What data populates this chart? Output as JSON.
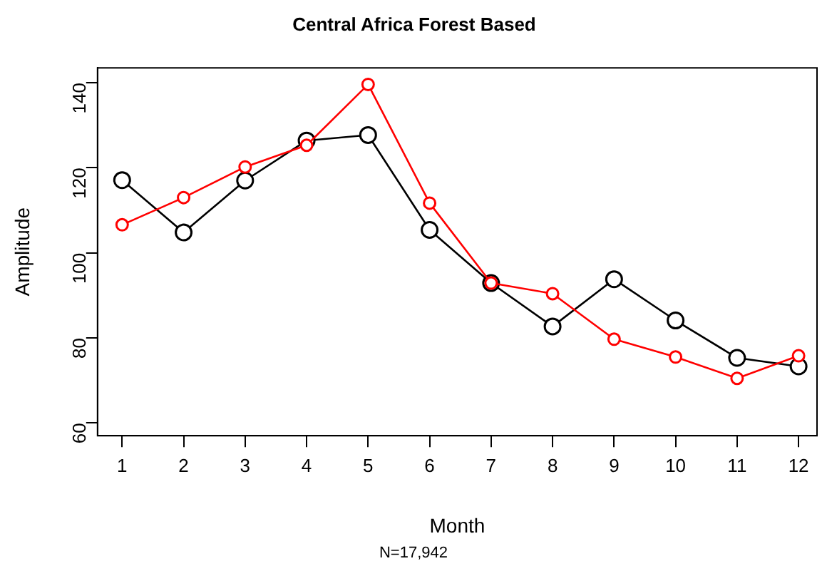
{
  "chart_data": {
    "type": "line",
    "title": "Central Africa Forest Based",
    "xlabel": "Month",
    "ylabel": "Amplitude",
    "annotations": [
      "N=17,942"
    ],
    "x": [
      1,
      2,
      3,
      4,
      5,
      6,
      7,
      8,
      9,
      10,
      11,
      12
    ],
    "xlim": [
      0.6,
      12.3
    ],
    "xticks": [
      1,
      2,
      3,
      4,
      5,
      6,
      7,
      8,
      9,
      10,
      11,
      12
    ],
    "ylim": [
      57,
      143.5
    ],
    "yticks": [
      60,
      80,
      100,
      120,
      140
    ],
    "grid": false,
    "legend": false,
    "marker": "circle",
    "line_style": "solid",
    "series": [
      {
        "color": "#000000",
        "values": [
          117.1,
          104.8,
          117,
          126.4,
          127.7,
          105.4,
          92.9,
          82.7,
          93.8,
          84.1,
          75.3,
          73.3
        ]
      },
      {
        "color": "#ff0000",
        "values": [
          106.6,
          113,
          120.2,
          125.3,
          139.6,
          111.7,
          92.9,
          90.4,
          79.7,
          75.5,
          70.5,
          75.8
        ]
      }
    ]
  }
}
